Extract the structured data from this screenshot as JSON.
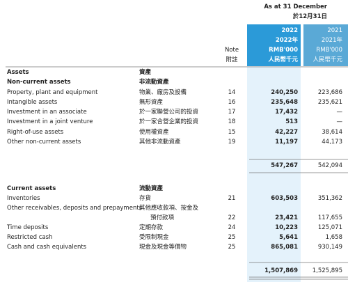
{
  "header": {
    "period": "As at 31 December",
    "period_zh": "於12月31日"
  },
  "columns": {
    "note": [
      "Note",
      "附註"
    ],
    "current": [
      "2022",
      "2022年",
      "RMB'000",
      "人民幣千元"
    ],
    "prior": [
      "2021",
      "2021年",
      "RMB'000",
      "人民幣千元"
    ]
  },
  "table": {
    "rows": [
      {
        "en": "Assets",
        "zh": "資產"
      },
      {
        "en": "Non-current assets",
        "zh": "非流動資產"
      },
      {
        "en": "Property, plant and equipment",
        "zh": "物業、廠房及設備",
        "note": "14",
        "current": "240,250",
        "prior": "223,686"
      },
      {
        "en": "Intangible assets",
        "zh": "無形資產",
        "note": "16",
        "current": "235,648",
        "prior": "235,621"
      },
      {
        "en": "Investment in an associate",
        "zh": "於一家聯營公司的投資",
        "note": "17",
        "current": "17,432",
        "prior": "—"
      },
      {
        "en": "Investment in a joint venture",
        "zh": "於一家合營企業的投資",
        "note": "18",
        "current": "513",
        "prior": "—"
      },
      {
        "en": "Right-of-use assets",
        "zh": "使用權資產",
        "note": "15",
        "current": "42,227",
        "prior": "38,614"
      },
      {
        "en": "Other non-current assets",
        "zh": "其他非流動資產",
        "note": "19",
        "current": "11,197",
        "prior": "44,173"
      },
      {
        "current": "547,267",
        "prior": "542,094"
      },
      {
        "en": "Current assets",
        "zh": "流動資產"
      },
      {
        "en": "Inventories",
        "zh": "存貨",
        "note": "21",
        "current": "603,503",
        "prior": "351,362"
      },
      {
        "en": "Other receivables, deposits and prepayments",
        "zh": "其他應收款項、按金及",
        "zh_cont": "預付款項",
        "note": "22",
        "current": "23,421",
        "prior": "117,655"
      },
      {
        "en": "Time deposits",
        "zh": "定期存款",
        "note": "24",
        "current": "10,223",
        "prior": "125,071"
      },
      {
        "en": "Restricted cash",
        "zh": "受限制現金",
        "note": "25",
        "current": "5,641",
        "prior": "1,658"
      },
      {
        "en": "Cash and cash equivalents",
        "zh": "現金及現金等價物",
        "note": "25",
        "current": "865,081",
        "prior": "930,149"
      },
      {
        "current": "1,507,869",
        "prior": "1,525,895"
      }
    ]
  }
}
